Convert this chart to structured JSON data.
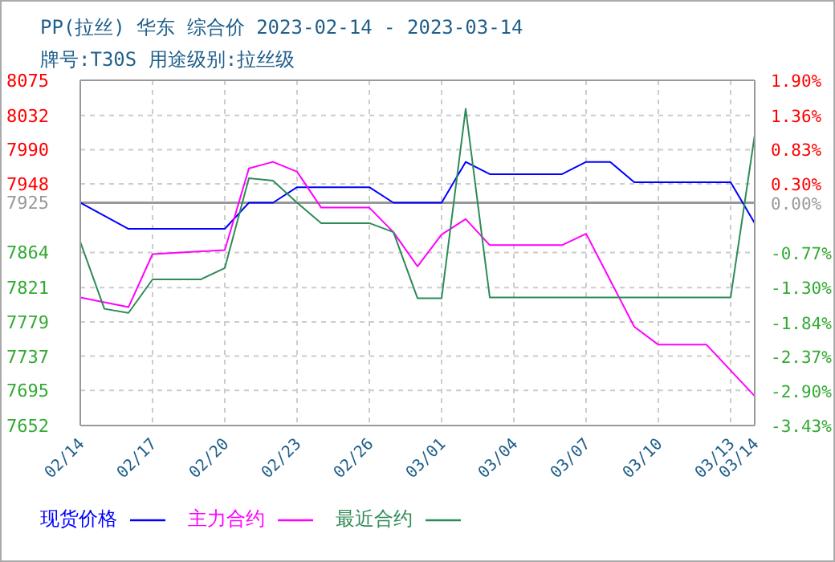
{
  "chart_data": {
    "type": "line",
    "title": "PP(拉丝) 华东 综合价 2023-02-14 - 2023-03-14",
    "subtitle": "牌号:T30S 用途级别:拉丝级",
    "xlim": [
      "2023-02-14",
      "2023-03-14"
    ],
    "xticks": [
      {
        "value": "2023-02-14",
        "label": "02/14"
      },
      {
        "value": "2023-02-17",
        "label": "02/17"
      },
      {
        "value": "2023-02-20",
        "label": "02/20"
      },
      {
        "value": "2023-02-23",
        "label": "02/23"
      },
      {
        "value": "2023-02-26",
        "label": "02/26"
      },
      {
        "value": "2023-03-01",
        "label": "03/01"
      },
      {
        "value": "2023-03-04",
        "label": "03/04"
      },
      {
        "value": "2023-03-07",
        "label": "03/07"
      },
      {
        "value": "2023-03-10",
        "label": "03/10"
      },
      {
        "value": "2023-03-13",
        "label": "03/13"
      },
      {
        "value": "2023-03-14",
        "label": "03/14"
      }
    ],
    "ylim": [
      7652,
      8075
    ],
    "yticks": [
      8075,
      8032,
      7990,
      7948,
      7925,
      7864,
      7821,
      7779,
      7737,
      7695,
      7652
    ],
    "y2lim": [
      -3.43,
      1.9
    ],
    "y2ticks": [
      {
        "value": 1.9,
        "label": "1.90%"
      },
      {
        "value": 1.36,
        "label": "1.36%"
      },
      {
        "value": 0.83,
        "label": "0.83%"
      },
      {
        "value": 0.3,
        "label": "0.30%"
      },
      {
        "value": 0,
        "label": "0.00%"
      },
      {
        "value": -0.77,
        "label": "-0.77%"
      },
      {
        "value": -1.3,
        "label": "-1.30%"
      },
      {
        "value": -1.84,
        "label": "-1.84%"
      },
      {
        "value": -2.37,
        "label": "-2.37%"
      },
      {
        "value": -2.9,
        "label": "-2.90%"
      },
      {
        "value": -3.43,
        "label": "-3.43%"
      }
    ],
    "grid": true,
    "legend": "bottom",
    "marker": "none",
    "line_style": "solid",
    "ref_lines": [
      {
        "axis": "y",
        "value": 7925,
        "color": "#999999",
        "line_style": "solid"
      }
    ],
    "series": [
      {
        "name": "现货价格",
        "color": "#0000ff",
        "x": [
          "2023-02-14",
          "2023-02-16",
          "2023-02-20",
          "2023-02-21",
          "2023-02-22",
          "2023-02-23",
          "2023-02-26",
          "2023-02-27",
          "2023-03-01",
          "2023-03-02",
          "2023-03-03",
          "2023-03-06",
          "2023-03-07",
          "2023-03-08",
          "2023-03-09",
          "2023-03-13",
          "2023-03-14"
        ],
        "values": [
          7925,
          7893,
          7893,
          7925,
          7925,
          7944,
          7944,
          7925,
          7925,
          7975,
          7960,
          7960,
          7975,
          7975,
          7950,
          7950,
          7900
        ]
      },
      {
        "name": "主力合约",
        "color": "#ff00ff",
        "x": [
          "2023-02-14",
          "2023-02-16",
          "2023-02-17",
          "2023-02-20",
          "2023-02-21",
          "2023-02-22",
          "2023-02-23",
          "2023-02-24",
          "2023-02-26",
          "2023-02-27",
          "2023-02-28",
          "2023-03-01",
          "2023-03-02",
          "2023-03-03",
          "2023-03-06",
          "2023-03-07",
          "2023-03-09",
          "2023-03-10",
          "2023-03-12",
          "2023-03-14"
        ],
        "values": [
          7809,
          7797,
          7862,
          7867,
          7967,
          7975,
          7963,
          7919,
          7919,
          7889,
          7847,
          7886,
          7905,
          7873,
          7873,
          7887,
          7773,
          7751,
          7751,
          7688
        ]
      },
      {
        "name": "最近合约",
        "color": "#2e8b57",
        "x": [
          "2023-02-14",
          "2023-02-15",
          "2023-02-16",
          "2023-02-17",
          "2023-02-19",
          "2023-02-20",
          "2023-02-21",
          "2023-02-22",
          "2023-02-23",
          "2023-02-24",
          "2023-02-26",
          "2023-02-27",
          "2023-02-28",
          "2023-03-01",
          "2023-03-02",
          "2023-03-03",
          "2023-03-13",
          "2023-03-14"
        ],
        "values": [
          7877,
          7795,
          7790,
          7831,
          7831,
          7845,
          7955,
          7952,
          7925,
          7900,
          7900,
          7889,
          7808,
          7808,
          8040,
          7809,
          7809,
          8008
        ]
      }
    ]
  }
}
